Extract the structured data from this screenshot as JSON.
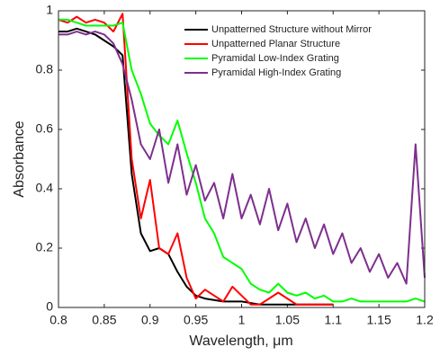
{
  "chart_data": {
    "type": "line",
    "xlabel": "Wavelength, μm",
    "ylabel": "Absorbance",
    "x": [
      0.8,
      0.81,
      0.82,
      0.83,
      0.84,
      0.85,
      0.86,
      0.87,
      0.88,
      0.89,
      0.9,
      0.91,
      0.92,
      0.93,
      0.94,
      0.95,
      0.96,
      0.97,
      0.98,
      0.99,
      1,
      1.01,
      1.02,
      1.03,
      1.04,
      1.05,
      1.06,
      1.07,
      1.08,
      1.09,
      1.1,
      1.11,
      1.12,
      1.13,
      1.14,
      1.15,
      1.16,
      1.17,
      1.18,
      1.19,
      1.2
    ],
    "series": [
      {
        "name": "Unpatterned Structure without Mirror",
        "color": "#000000",
        "values": [
          0.93,
          0.93,
          0.94,
          0.93,
          0.92,
          0.9,
          0.88,
          0.85,
          0.45,
          0.25,
          0.19,
          0.2,
          0.18,
          0.12,
          0.07,
          0.04,
          0.03,
          0.025,
          0.02,
          0.02,
          0.02,
          0.015,
          0.01,
          0.01,
          0.01,
          0.01,
          0.01,
          0.01,
          0.01,
          0.01,
          0.01,
          null,
          null,
          null,
          null,
          null,
          null,
          null,
          null,
          null,
          null
        ]
      },
      {
        "name": "Unpatterned Planar Structure",
        "color": "#ff0000",
        "values": [
          0.97,
          0.96,
          0.98,
          0.96,
          0.97,
          0.96,
          0.93,
          0.99,
          0.5,
          0.3,
          0.43,
          0.2,
          0.18,
          0.25,
          0.1,
          0.03,
          0.06,
          0.04,
          0.02,
          0.07,
          0.04,
          0.01,
          0.01,
          0.03,
          0.05,
          0.03,
          0.01,
          0.01,
          0.01,
          0.01,
          0.01,
          null,
          null,
          null,
          null,
          null,
          null,
          null,
          null,
          null,
          null
        ]
      },
      {
        "name": "Pyramidal Low-Index Grating",
        "color": "#00ff00",
        "values": [
          0.97,
          0.97,
          0.96,
          0.95,
          0.95,
          0.95,
          0.95,
          0.96,
          0.8,
          0.72,
          0.62,
          0.58,
          0.55,
          0.63,
          0.52,
          0.42,
          0.3,
          0.25,
          0.17,
          0.15,
          0.13,
          0.08,
          0.06,
          0.05,
          0.08,
          0.05,
          0.04,
          0.05,
          0.03,
          0.04,
          0.02,
          0.02,
          0.03,
          0.02,
          0.02,
          0.02,
          0.02,
          0.02,
          0.02,
          0.03,
          0.02
        ]
      },
      {
        "name": "Pyramidal High-Index Grating",
        "color": "#7e2f8e",
        "values": [
          0.92,
          0.92,
          0.93,
          0.92,
          0.93,
          0.92,
          0.89,
          0.82,
          0.7,
          0.55,
          0.5,
          0.6,
          0.42,
          0.55,
          0.38,
          0.48,
          0.36,
          0.42,
          0.3,
          0.45,
          0.3,
          0.38,
          0.28,
          0.4,
          0.26,
          0.35,
          0.22,
          0.3,
          0.2,
          0.28,
          0.18,
          0.25,
          0.15,
          0.2,
          0.12,
          0.18,
          0.1,
          0.15,
          0.08,
          0.55,
          0.1
        ]
      }
    ],
    "xlim": [
      0.8,
      1.2
    ],
    "xticks": [
      0.8,
      0.85,
      0.9,
      0.95,
      1,
      1.05,
      1.1,
      1.15,
      1.2
    ],
    "ylim": [
      0,
      1
    ],
    "yticks": [
      0,
      0.2,
      0.4,
      0.6,
      0.8,
      1
    ],
    "legend": "upper right",
    "grid": false
  }
}
